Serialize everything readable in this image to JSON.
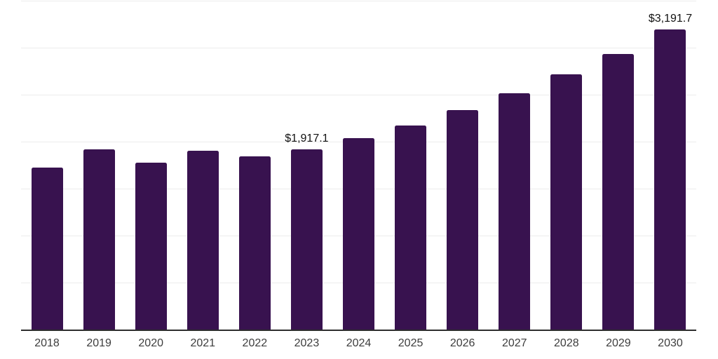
{
  "chart_data": {
    "type": "bar",
    "title": "",
    "xlabel": "",
    "ylabel": "",
    "categories": [
      "2018",
      "2019",
      "2020",
      "2021",
      "2022",
      "2023",
      "2024",
      "2025",
      "2026",
      "2027",
      "2028",
      "2029",
      "2030"
    ],
    "values": [
      1722,
      1915,
      1776,
      1903,
      1846,
      1917.1,
      2035,
      2170,
      2334,
      2517,
      2717,
      2936,
      3191.7
    ],
    "data_labels": [
      {
        "category": "2023",
        "text": "$1,917.1"
      },
      {
        "category": "2030",
        "text": "$3,191.7"
      }
    ],
    "ylim": [
      0,
      3500
    ],
    "grid_step": 500,
    "grid": "horizontal",
    "legend": "none",
    "y_tick_labels": "hidden"
  },
  "colors": {
    "bar": "#38124f",
    "gridline": "#ececec",
    "axis": "#2e2e2e",
    "tick_label": "#3d3d3d",
    "data_label": "#111111",
    "background": "#ffffff"
  }
}
